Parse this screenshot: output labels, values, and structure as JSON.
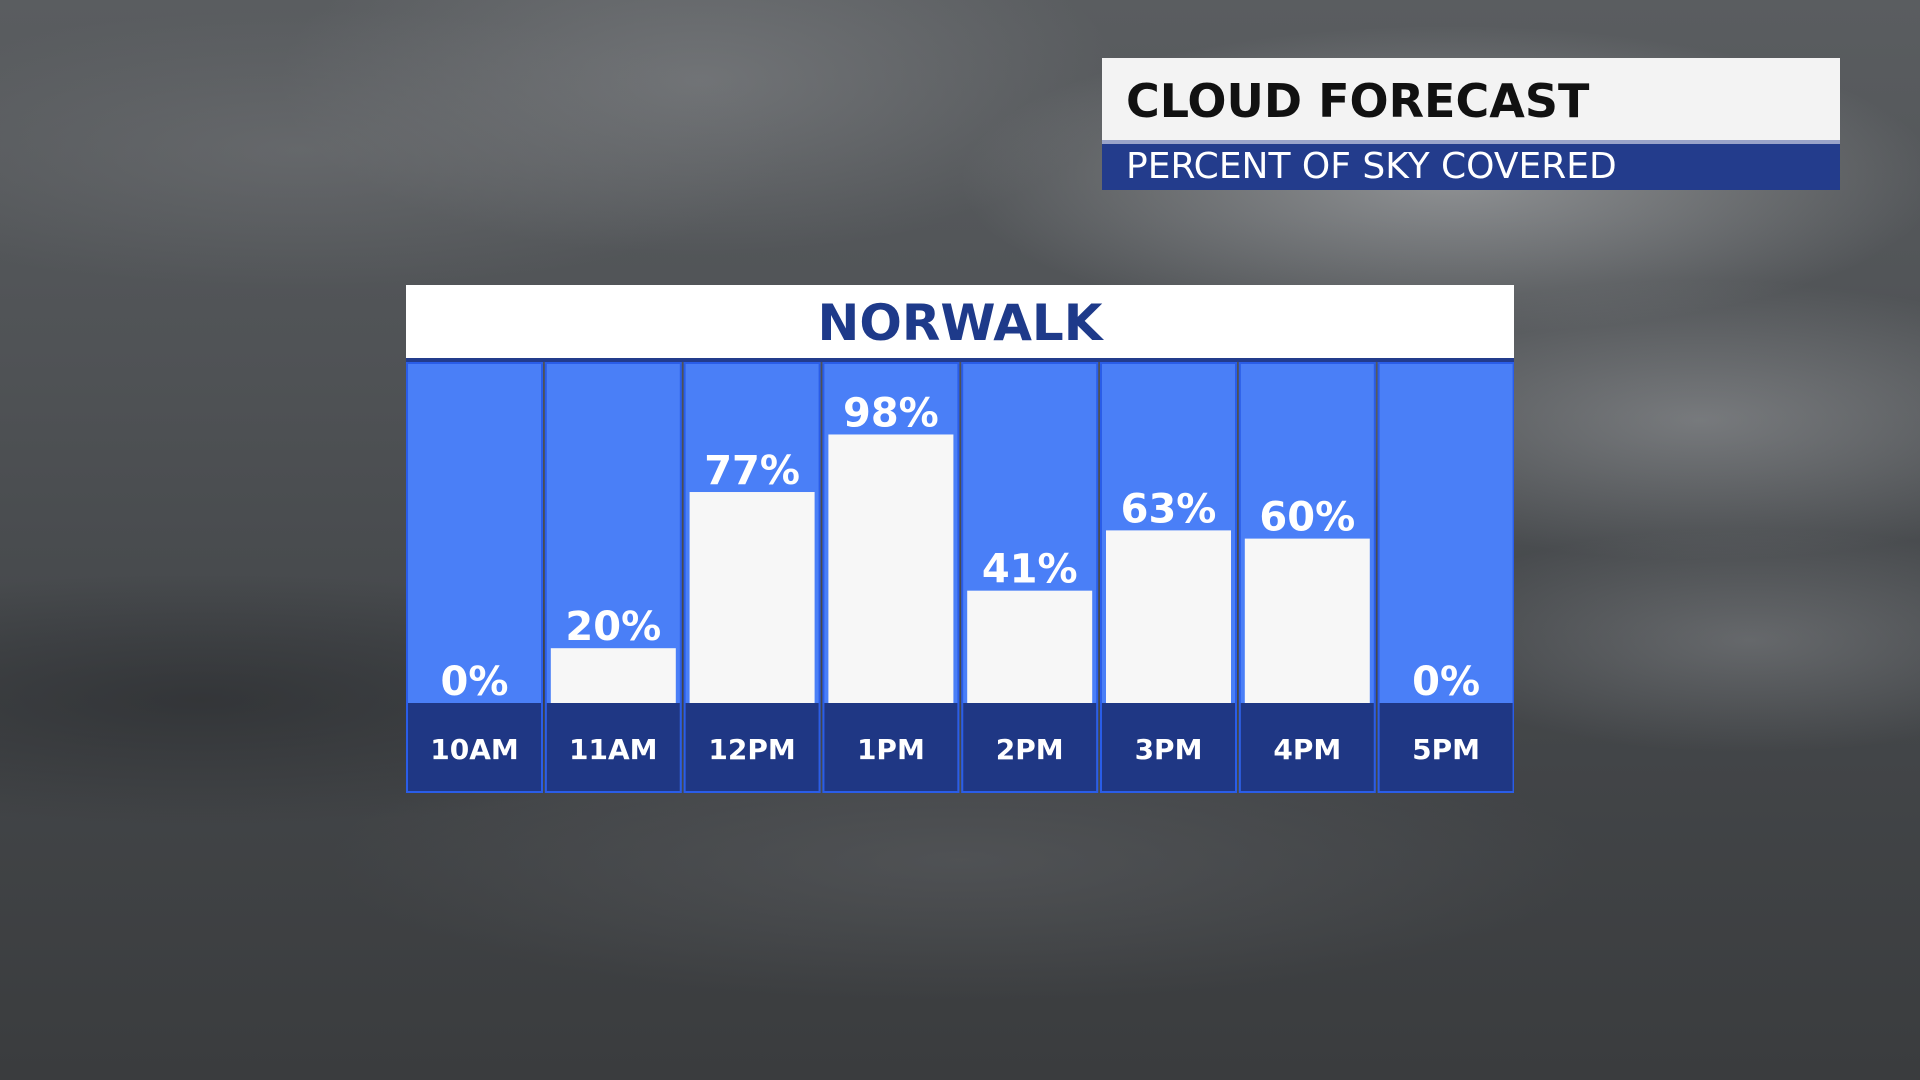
{
  "title": {
    "main": "CLOUD FORECAST",
    "sub": "PERCENT OF SKY COVERED"
  },
  "colors": {
    "column_bg": "#4a7ff7",
    "column_border": "#2a5de8",
    "bar_fill": "#f7f7f7",
    "time_cell": "#1f3784",
    "header_text": "#1e3a8a",
    "sub_band": "#233c8c"
  },
  "chart_data": {
    "type": "bar",
    "title": "NORWALK",
    "categories": [
      "10AM",
      "11AM",
      "12PM",
      "1PM",
      "2PM",
      "3PM",
      "4PM",
      "5PM"
    ],
    "values": [
      0,
      20,
      77,
      98,
      41,
      63,
      60,
      0
    ],
    "value_labels": [
      "0%",
      "20%",
      "77%",
      "98%",
      "41%",
      "63%",
      "60%",
      "0%"
    ],
    "ylim": [
      0,
      100
    ],
    "grid": false,
    "legend": "none"
  }
}
